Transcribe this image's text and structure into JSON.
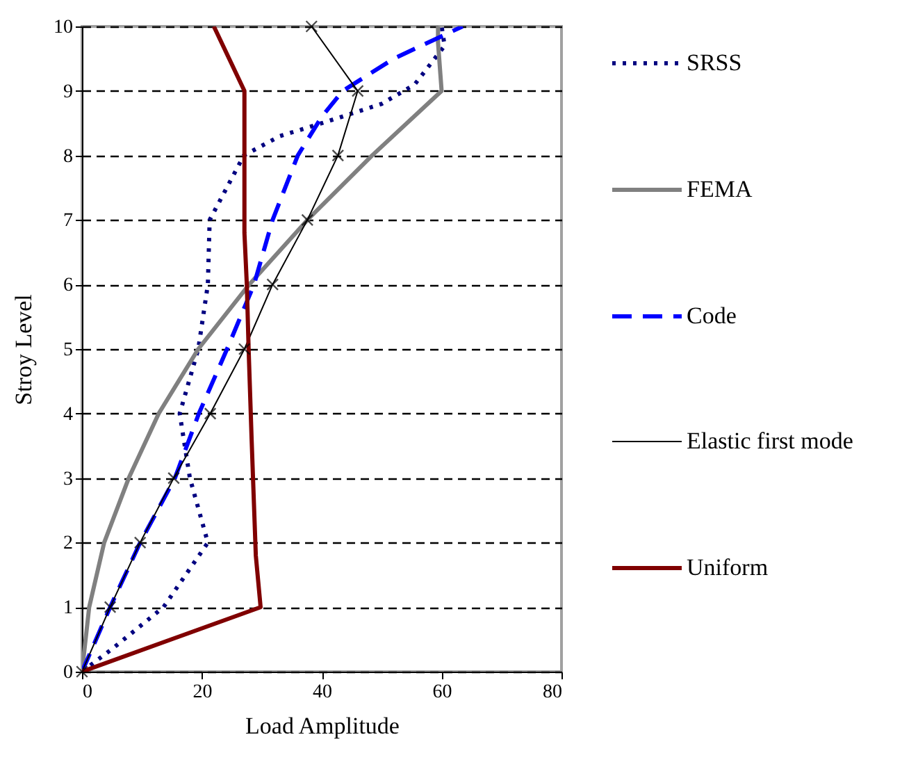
{
  "chart_data": {
    "type": "line",
    "xlabel": "Load Amplitude",
    "ylabel": "Stroy Level",
    "xlim": [
      0,
      80
    ],
    "xticks": [
      0,
      20,
      40,
      60,
      80
    ],
    "ylim": [
      0,
      10
    ],
    "yticks": [
      0,
      1,
      2,
      3,
      4,
      5,
      6,
      7,
      8,
      9,
      10
    ],
    "grid": "y",
    "legend": "right",
    "series": [
      {
        "name": "SRSS",
        "color": "#000080",
        "line_style": "dotted",
        "x": [
          0,
          5,
          13.6,
          21,
          18,
          16.3,
          19.4,
          21,
          21.3,
          27,
          33,
          40,
          50,
          55.5,
          60.5,
          60
        ],
        "values": [
          0,
          0.35,
          1,
          2,
          3,
          4,
          5,
          6,
          7,
          8,
          8.3,
          8.5,
          8.8,
          9.1,
          9.7,
          10
        ]
      },
      {
        "name": "FEMA",
        "color": "#808080",
        "line_style": "solid",
        "x": [
          0,
          1.2,
          3.7,
          7.8,
          12.8,
          19.4,
          27.9,
          37.6,
          48.4,
          60,
          59.4,
          59.4
        ],
        "values": [
          0,
          1,
          2,
          3,
          4,
          5,
          6,
          7,
          8,
          9,
          9.75,
          10
        ]
      },
      {
        "name": "Code",
        "color": "#0000ff",
        "line_style": "dashed",
        "x": [
          0,
          4.7,
          9.7,
          15.5,
          19.5,
          24.2,
          28.7,
          31.8,
          36,
          40,
          43.5,
          52,
          63.5
        ],
        "values": [
          0,
          1,
          2,
          3,
          4,
          5,
          6,
          7,
          8,
          8.6,
          9,
          9.5,
          10
        ]
      },
      {
        "name": "Elastic first mode",
        "color": "#000000",
        "line_style": "solid",
        "marker": "cross",
        "x": [
          0,
          4.7,
          9.7,
          15.3,
          21.4,
          27.1,
          31.8,
          37.6,
          42.7,
          46,
          38.3
        ],
        "values": [
          0,
          1,
          2,
          3,
          4,
          5,
          6,
          7,
          8,
          9,
          10
        ]
      },
      {
        "name": "Uniform",
        "color": "#800000",
        "line_style": "solid",
        "x": [
          0,
          29.8,
          29,
          28.3,
          27.8,
          27.5,
          27.1,
          27.1,
          22
        ],
        "values": [
          0,
          1,
          1.8,
          3.6,
          5,
          6,
          6.8,
          9,
          10
        ]
      }
    ]
  }
}
